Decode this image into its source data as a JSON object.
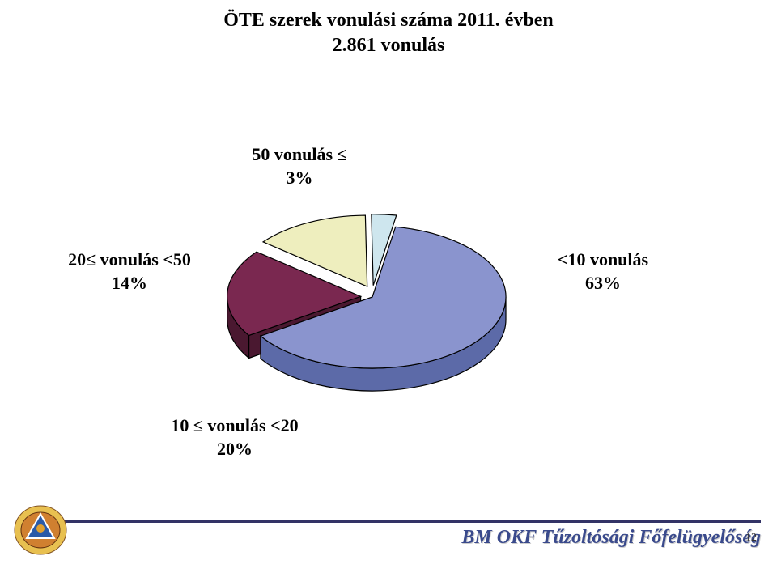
{
  "title": {
    "line1": "ÖTE szerek vonulási száma 2011. évben",
    "line2": "2.861 vonulás",
    "fontsize": 24,
    "fontweight": "bold",
    "color": "#000000"
  },
  "chart": {
    "type": "pie",
    "style": "3d-exploded",
    "background_color": "#ffffff",
    "slices": [
      {
        "label_line1": "<10 vonulás",
        "label_line2": "63%",
        "value": 63,
        "fill": "#8a94ce",
        "side_fill": "#5c6aa8",
        "stroke": "#000000",
        "exploded": false
      },
      {
        "label_line1": "10 ≤ vonulás <20",
        "label_line2": "20%",
        "value": 20,
        "fill": "#7a2850",
        "side_fill": "#4a1830",
        "stroke": "#000000",
        "exploded": true
      },
      {
        "label_line1": "20≤ vonulás <50",
        "label_line2": "14%",
        "value": 14,
        "fill": "#eeeebe",
        "side_fill": "#cccc99",
        "stroke": "#000000",
        "exploded": true
      },
      {
        "label_line1": "50 vonulás ≤",
        "label_line2": "3%",
        "value": 3,
        "fill": "#cee6ee",
        "side_fill": "#a0c8d8",
        "stroke": "#000000",
        "exploded": true
      }
    ],
    "label_fontsize": 22,
    "label_fontweight": "bold",
    "label_color": "#000000",
    "stroke_width": 1.2,
    "depth": 28
  },
  "footer": {
    "text": "BM OKF Tűzoltósági Főfelügyelőség",
    "fontsize": 24,
    "color": "#3a4a8c",
    "border_color": "#333366"
  },
  "page_number": "12",
  "badge": {
    "outer_color": "#e8c050",
    "inner_color": "#d08030",
    "triangle_color": "#2a5aa8",
    "triangle_stroke": "#ffffff"
  }
}
